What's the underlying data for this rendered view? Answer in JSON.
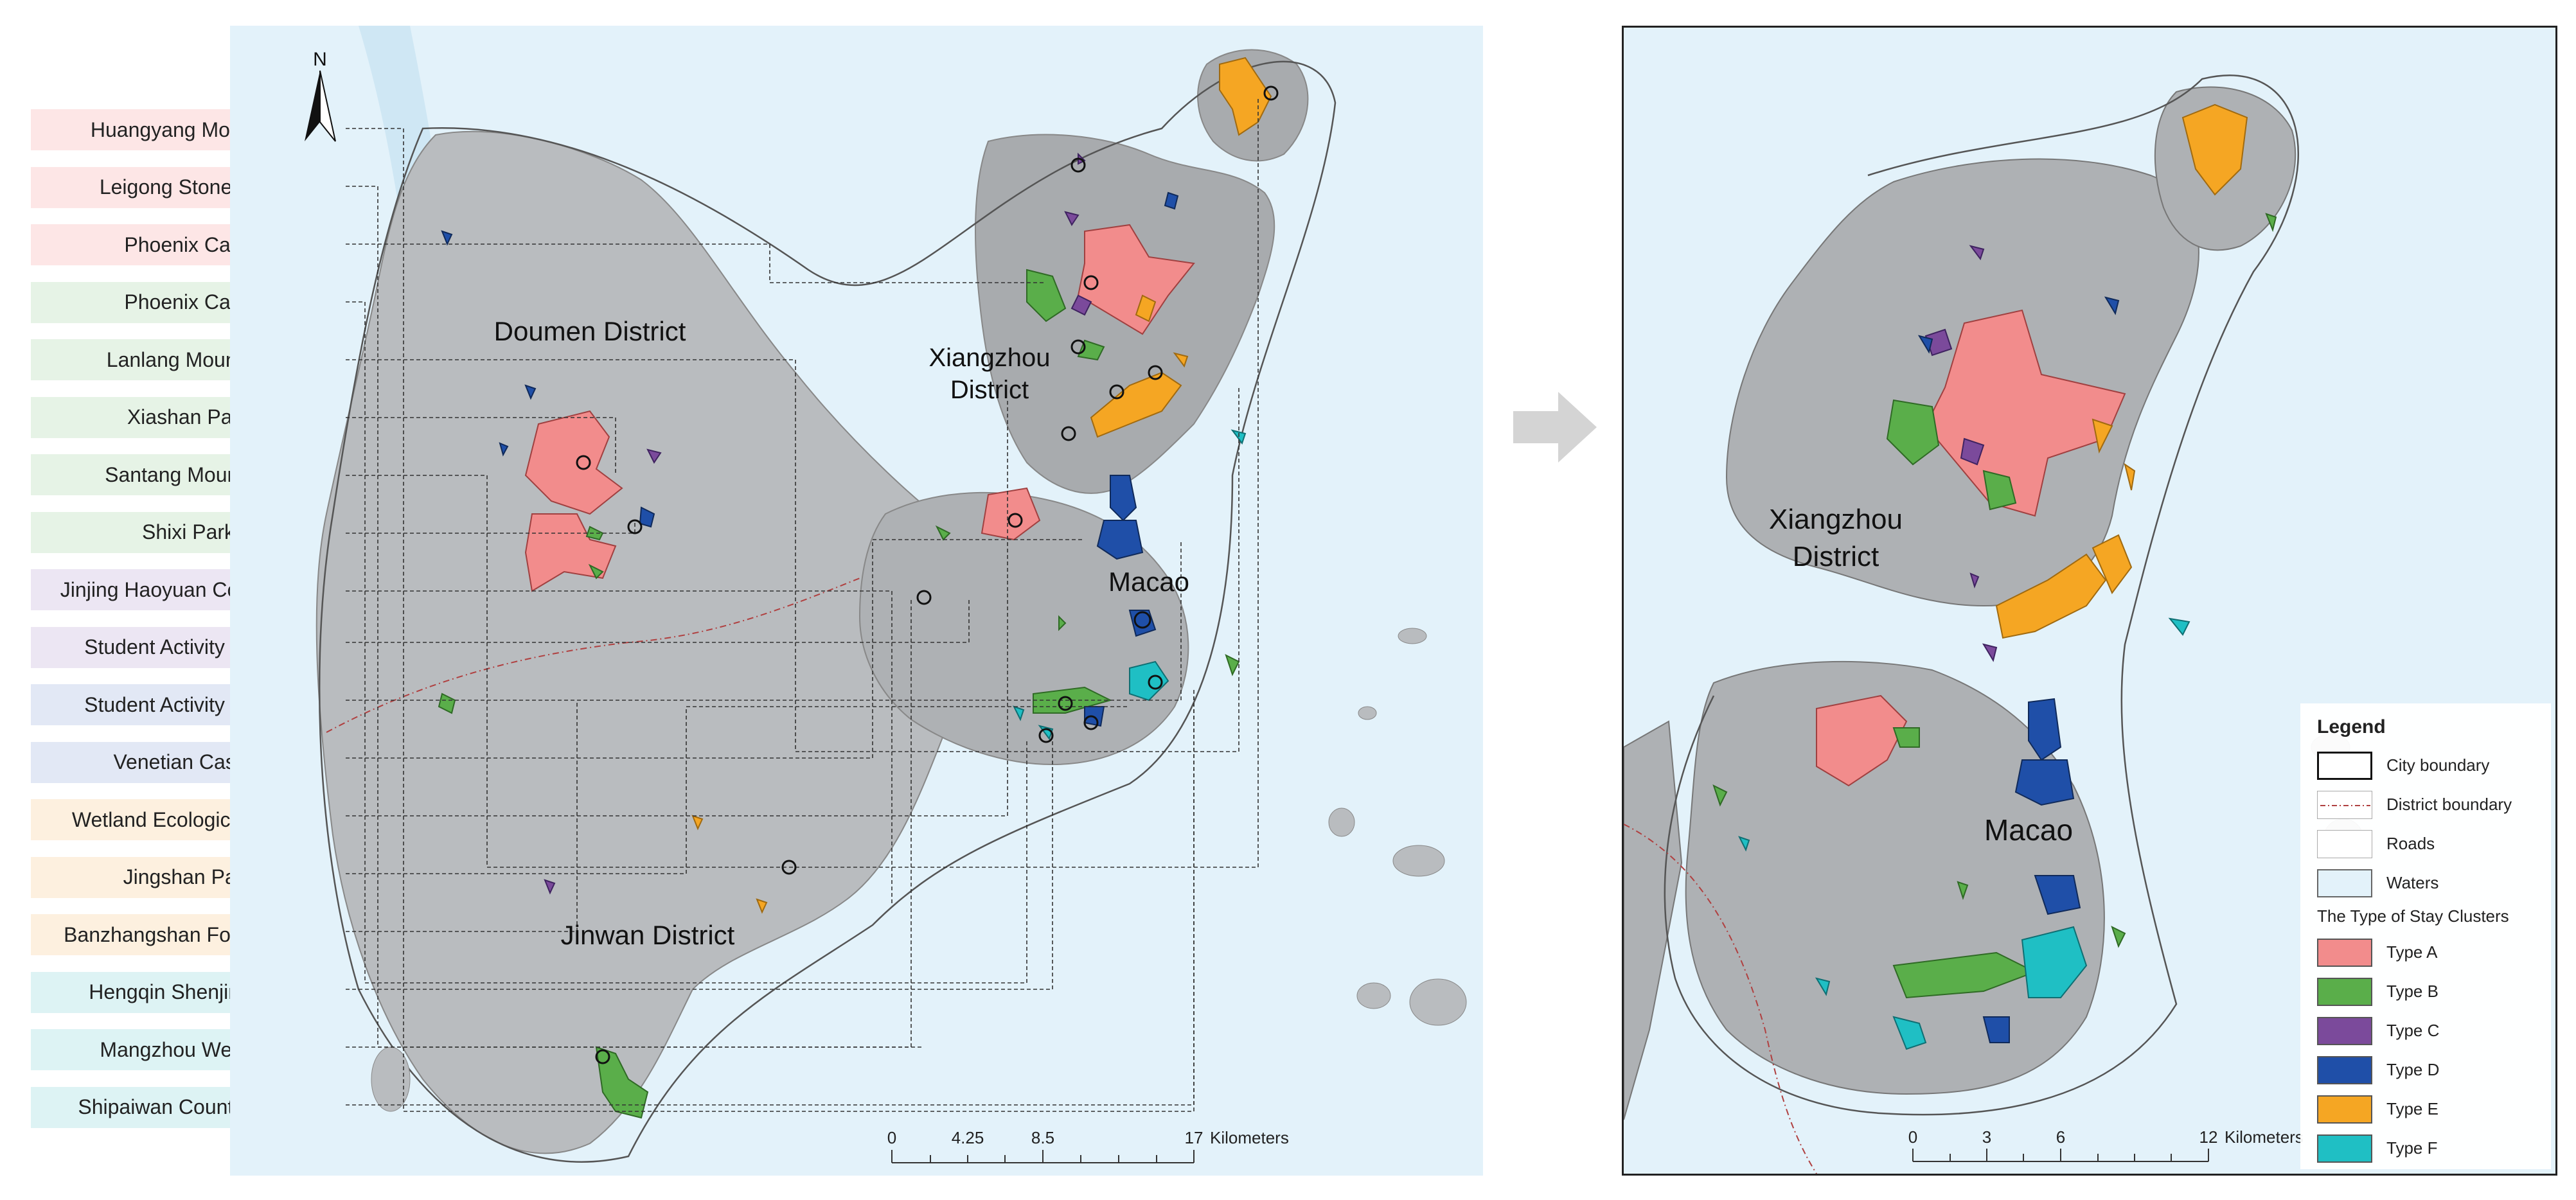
{
  "labels": [
    {
      "text": "Huangyang Mountain",
      "category": "a"
    },
    {
      "text": "Leigong Stone Wall",
      "category": "a"
    },
    {
      "text": "Phoenix Cave",
      "category": "a"
    },
    {
      "text": "Phoenix Cave",
      "category": "b"
    },
    {
      "text": "Lanlang Mountain",
      "category": "b"
    },
    {
      "text": "Xiashan Park",
      "category": "b"
    },
    {
      "text": "Santang Mountain",
      "category": "b"
    },
    {
      "text": "Shixi Park",
      "category": "b"
    },
    {
      "text": "Jinjing Haoyuan Community",
      "category": "c"
    },
    {
      "text": "Student Activity Center",
      "category": "c"
    },
    {
      "text": "Student Activity Center",
      "category": "d"
    },
    {
      "text": "Venetian Casino",
      "category": "d"
    },
    {
      "text": "Wetland Ecological Parks",
      "category": "e"
    },
    {
      "text": "Jingshan Park",
      "category": "e"
    },
    {
      "text": "Banzhangshan Forest Park",
      "category": "e"
    },
    {
      "text": "Hengqin Shenjing Col",
      "category": "f"
    },
    {
      "text": "Mangzhou Wetland",
      "category": "f"
    },
    {
      "text": "Shipaiwan Country Park",
      "category": "f"
    }
  ],
  "left_map": {
    "north_label": "N",
    "districts": {
      "doumen": "Doumen District",
      "xiangzhou_1": "Xiangzhou",
      "xiangzhou_2": "District",
      "macao": "Macao",
      "jinwan": "Jinwan District"
    },
    "scale": {
      "t0": "0",
      "t1": "4.25",
      "t2": "8.5",
      "t3": "17",
      "unit": "Kilometers"
    }
  },
  "right_map": {
    "districts": {
      "xiangzhou_1": "Xiangzhou",
      "xiangzhou_2": "District",
      "macao": "Macao"
    },
    "scale": {
      "t0": "0",
      "t1": "3",
      "t2": "6",
      "t3": "12",
      "unit": "Kilometers"
    }
  },
  "legend": {
    "title": "Legend",
    "items": [
      {
        "label": "City boundary",
        "style": "city"
      },
      {
        "label": "District boundary",
        "style": "district"
      },
      {
        "label": "Roads",
        "style": "roads"
      },
      {
        "label": "Waters",
        "style": "waters"
      }
    ],
    "cluster_heading": "The Type of Stay Clusters",
    "clusters": [
      {
        "label": "Type A",
        "color": "#f28c8c"
      },
      {
        "label": "Type B",
        "color": "#5aae4a"
      },
      {
        "label": "Type C",
        "color": "#7b4a9b"
      },
      {
        "label": "Type D",
        "color": "#1f4fa8"
      },
      {
        "label": "Type E",
        "color": "#f5a623"
      },
      {
        "label": "Type F",
        "color": "#1fbfc4"
      }
    ]
  }
}
